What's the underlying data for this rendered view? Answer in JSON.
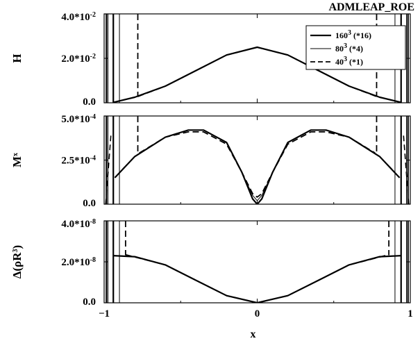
{
  "chart_data": [
    {
      "type": "line",
      "title": "ADMLEAP_ROE",
      "ylabel": "H",
      "xlim": [
        -1,
        1
      ],
      "ylim": [
        0,
        0.04
      ],
      "yticks": [
        {
          "value": 0.0,
          "base": "0.0",
          "exp": ""
        },
        {
          "value": 0.02,
          "base": "2.0*10",
          "exp": "-2"
        },
        {
          "value": 0.04,
          "base": "4.0*10",
          "exp": "-2"
        }
      ],
      "legend": {
        "position": "top-right",
        "entries": [
          {
            "base": "160",
            "exp": "3",
            "suffix": " (*16)",
            "style": "solid-thick"
          },
          {
            "base": "80",
            "exp": "3",
            "suffix": " (*4)",
            "style": "solid-thin"
          },
          {
            "base": "40",
            "exp": "3",
            "suffix": " (*1)",
            "style": "dashed"
          }
        ]
      },
      "series": [
        {
          "style": "solid-thick",
          "x": [
            -0.94,
            -0.8,
            -0.6,
            -0.4,
            -0.2,
            0,
            0.2,
            0.4,
            0.6,
            0.8,
            0.94
          ],
          "y": [
            0.0002,
            0.0025,
            0.0075,
            0.0145,
            0.0215,
            0.025,
            0.0215,
            0.0145,
            0.0075,
            0.0025,
            0.0002
          ]
        },
        {
          "style": "solid-thin",
          "x": [
            -0.88,
            -0.8,
            -0.6,
            -0.4,
            -0.2,
            0,
            0.2,
            0.4,
            0.6,
            0.8,
            0.88
          ],
          "y": [
            0.001,
            0.0025,
            0.0075,
            0.0145,
            0.0215,
            0.025,
            0.0215,
            0.0145,
            0.0075,
            0.0025,
            0.001
          ]
        },
        {
          "style": "dashed",
          "x": [
            -0.78,
            -0.6,
            -0.4,
            -0.2,
            0,
            0.2,
            0.4,
            0.6,
            0.78
          ],
          "y": [
            0.0028,
            0.0075,
            0.0145,
            0.0215,
            0.025,
            0.0215,
            0.0145,
            0.0075,
            0.0028
          ]
        }
      ]
    },
    {
      "type": "line",
      "ylabel_base": "M",
      "ylabel_exp": "x",
      "xlim": [
        -1,
        1
      ],
      "ylim": [
        0,
        0.0005
      ],
      "yticks": [
        {
          "value": 0.0,
          "base": "0.0",
          "exp": ""
        },
        {
          "value": 0.00025,
          "base": "2.5*10",
          "exp": "-4"
        },
        {
          "value": 0.0005,
          "base": "5.0*10",
          "exp": "-4"
        }
      ],
      "series": [
        {
          "style": "solid-thick",
          "x": [
            -0.93,
            -0.8,
            -0.6,
            -0.45,
            -0.35,
            -0.2,
            -0.1,
            -0.03,
            0,
            0.03,
            0.1,
            0.2,
            0.35,
            0.45,
            0.6,
            0.8,
            0.93
          ],
          "y": [
            0.00015,
            0.00027,
            0.00038,
            0.00042,
            0.00042,
            0.00035,
            0.00018,
            3e-05,
            0,
            3e-05,
            0.00018,
            0.00035,
            0.00042,
            0.00042,
            0.00038,
            0.00027,
            0.00015
          ]
        },
        {
          "style": "solid-thin",
          "x": [
            -0.88,
            -0.8,
            -0.6,
            -0.45,
            -0.35,
            -0.2,
            -0.1,
            -0.03,
            0,
            0.03,
            0.1,
            0.2,
            0.35,
            0.45,
            0.6,
            0.8,
            0.88
          ],
          "y": [
            0.0002,
            0.00027,
            0.00038,
            0.00042,
            0.00042,
            0.00035,
            0.00018,
            5e-05,
            2e-05,
            5e-05,
            0.00018,
            0.00035,
            0.00042,
            0.00042,
            0.00038,
            0.00027,
            0.0002
          ]
        },
        {
          "style": "dashed",
          "x": [
            -0.77,
            -0.6,
            -0.45,
            -0.35,
            -0.2,
            -0.1,
            -0.03,
            0,
            0.03,
            0.1,
            0.2,
            0.35,
            0.45,
            0.6,
            0.77
          ],
          "y": [
            0.00029,
            0.00038,
            0.00041,
            0.00041,
            0.00034,
            0.00018,
            6e-05,
            4e-05,
            6e-05,
            0.00018,
            0.00034,
            0.00041,
            0.00041,
            0.00038,
            0.00029
          ]
        }
      ]
    },
    {
      "type": "line",
      "ylabel": "Δ(ρR",
      "ylabel_exp": "3",
      "ylabel_close": ")",
      "xlabel": "x",
      "xlim": [
        -1,
        1
      ],
      "ylim": [
        0,
        4e-08
      ],
      "xticks": [
        "−1",
        "0",
        "1"
      ],
      "yticks": [
        {
          "value": 0.0,
          "base": "0.0",
          "exp": ""
        },
        {
          "value": 2e-08,
          "base": "2.0*10",
          "exp": "-8"
        },
        {
          "value": 4e-08,
          "base": "4.0*10",
          "exp": "-8"
        }
      ],
      "series": [
        {
          "style": "solid-thick",
          "x": [
            -0.94,
            -0.8,
            -0.6,
            -0.4,
            -0.2,
            0,
            0.2,
            0.4,
            0.6,
            0.8,
            0.94
          ],
          "y": [
            2.3e-08,
            2.25e-08,
            1.85e-08,
            1.1e-08,
            3.5e-09,
            0,
            3.5e-09,
            1.1e-08,
            1.85e-08,
            2.25e-08,
            2.3e-08
          ]
        },
        {
          "style": "solid-thin",
          "x": [
            -0.9,
            -0.8,
            -0.6,
            -0.4,
            -0.2,
            0,
            0.2,
            0.4,
            0.6,
            0.8,
            0.9
          ],
          "y": [
            2.3e-08,
            2.25e-08,
            1.85e-08,
            1.1e-08,
            3.5e-09,
            0,
            3.5e-09,
            1.1e-08,
            1.85e-08,
            2.25e-08,
            2.3e-08
          ]
        },
        {
          "style": "dashed",
          "x": [
            -0.86,
            -0.6,
            -0.4,
            -0.2,
            0,
            0.2,
            0.4,
            0.6,
            0.86
          ],
          "y": [
            2.35e-08,
            1.85e-08,
            1.1e-08,
            3.5e-09,
            0,
            3.5e-09,
            1.1e-08,
            1.85e-08,
            2.35e-08
          ]
        }
      ]
    }
  ]
}
